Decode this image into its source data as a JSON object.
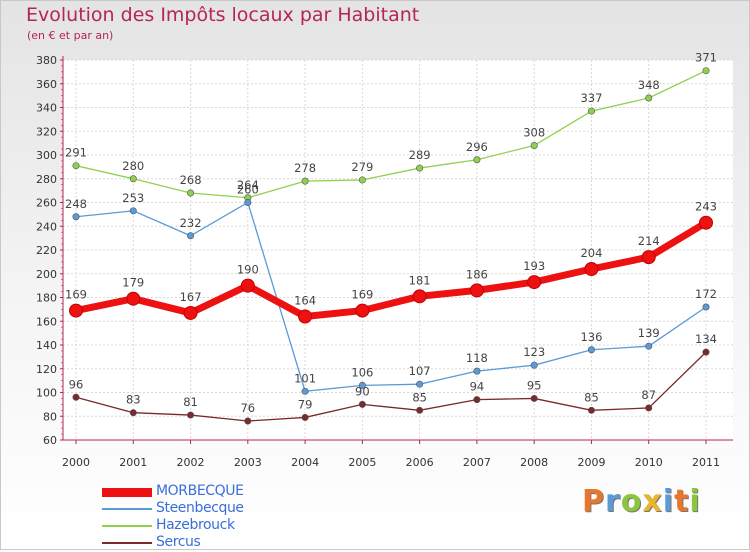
{
  "chart_data": {
    "type": "line",
    "title": "Evolution des Impôts locaux par Habitant",
    "subtitle": "(en € et par an)",
    "xlabel": "",
    "ylabel": "",
    "categories": [
      "2000",
      "2001",
      "2002",
      "2003",
      "2004",
      "2005",
      "2006",
      "2007",
      "2008",
      "2009",
      "2010",
      "2011"
    ],
    "ylim": [
      60,
      380
    ],
    "yticks": [
      60,
      80,
      100,
      120,
      140,
      160,
      180,
      200,
      220,
      240,
      260,
      280,
      300,
      320,
      340,
      360,
      380
    ],
    "legend_position": "bottom-left",
    "series": [
      {
        "name": "Hazebrouck",
        "color": "#8fd14f",
        "emphasis": false,
        "values": [
          291,
          280,
          268,
          264,
          278,
          279,
          289,
          296,
          308,
          337,
          348,
          371
        ]
      },
      {
        "name": "Steenbecque",
        "color": "#5a9ad6",
        "emphasis": false,
        "values": [
          248,
          253,
          232,
          260,
          101,
          106,
          107,
          118,
          123,
          136,
          139,
          172
        ]
      },
      {
        "name": "Sercus",
        "color": "#7a2a2a",
        "emphasis": false,
        "values": [
          96,
          83,
          81,
          76,
          79,
          90,
          85,
          94,
          95,
          85,
          87,
          134
        ]
      },
      {
        "name": "MORBECQUE",
        "color": "#ee1111",
        "emphasis": true,
        "values": [
          169,
          179,
          167,
          190,
          164,
          169,
          181,
          186,
          193,
          204,
          214,
          243
        ]
      }
    ],
    "legend_order": [
      "MORBECQUE",
      "Steenbecque",
      "Hazebrouck",
      "Sercus"
    ]
  },
  "logo": {
    "letters": [
      "P",
      "r",
      "o",
      "x",
      "i",
      "t",
      "i"
    ],
    "colors": [
      "#e8762c",
      "#5b9bd5",
      "#8cc63f",
      "#e8b52c",
      "#5b9bd5",
      "#e8762c",
      "#8cc63f"
    ]
  }
}
